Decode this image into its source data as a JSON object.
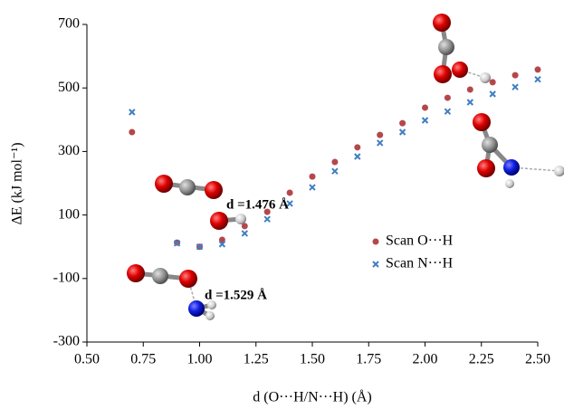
{
  "chart_data": {
    "type": "scatter",
    "x_label": "d (O···H/N···H) (Å)",
    "y_label": "ΔE (kJ mol⁻¹)",
    "x": [
      0.7,
      0.9,
      1.0,
      1.1,
      1.2,
      1.3,
      1.4,
      1.5,
      1.6,
      1.7,
      1.8,
      1.9,
      2.0,
      2.1,
      2.2,
      2.3,
      2.4,
      2.5
    ],
    "series": [
      {
        "name": "Scan O···H",
        "color": "#b5474b",
        "marker": "circle",
        "values": [
          361,
          13,
          0,
          22,
          65,
          110,
          170,
          221,
          267,
          313,
          352,
          389,
          438,
          469,
          495,
          518,
          540,
          558
        ]
      },
      {
        "name": "Scan N···H",
        "color": "#3f7fc1",
        "marker": "x",
        "values": [
          424,
          11,
          0,
          8,
          42,
          87,
          136,
          187,
          238,
          284,
          327,
          361,
          398,
          426,
          455,
          481,
          503,
          527
        ]
      }
    ],
    "annotations": [
      "d =1.476 Å",
      "d =1.529 Å"
    ],
    "xlim": [
      0.5,
      2.5
    ],
    "xticks": [
      {
        "value": 0.5,
        "label": "0.50"
      },
      {
        "value": 0.75,
        "label": "0.75"
      },
      {
        "value": 1.0,
        "label": "1.00"
      },
      {
        "value": 1.25,
        "label": "1.25"
      },
      {
        "value": 1.5,
        "label": "1.50"
      },
      {
        "value": 1.75,
        "label": "1.75"
      },
      {
        "value": 2.0,
        "label": "2.00"
      },
      {
        "value": 2.25,
        "label": "2.25"
      },
      {
        "value": 2.5,
        "label": "2.50"
      }
    ],
    "ylim": [
      -300,
      700
    ],
    "yticks": [
      -300,
      -100,
      100,
      300,
      500,
      700
    ],
    "grid": false
  }
}
